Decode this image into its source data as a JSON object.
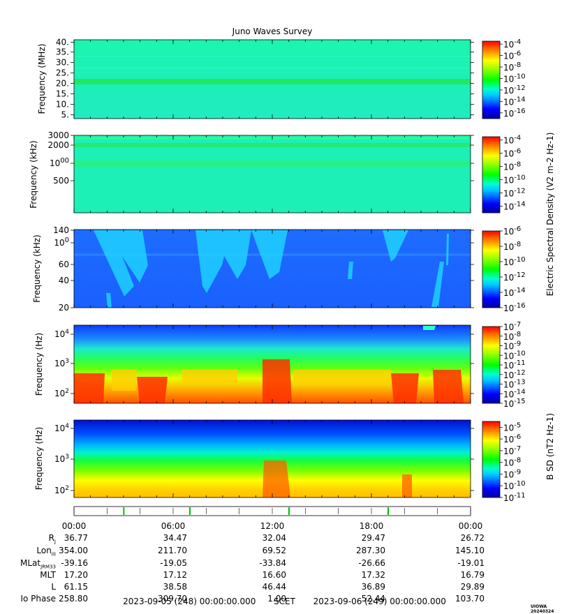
{
  "chart_data": {
    "type": "heatmap",
    "title": "Juno Waves Survey",
    "x_range": [
      "2023-09-05 00:00",
      "2023-09-06 00:00"
    ],
    "x_tick_labels": [
      "00:00",
      "06:00",
      "12:00",
      "18:00",
      "00:00"
    ],
    "panels": [
      {
        "ylabel": "Frequency (MHz)",
        "y_scale": "linear",
        "y_ticks": [
          "40.",
          "35.",
          "30.",
          "25.",
          "20.",
          "15.",
          "10.",
          "5."
        ],
        "colorbar_ticks": [
          "10-4",
          "10-6",
          "10-8",
          "10-10",
          "10-12",
          "10-14",
          "10-16"
        ],
        "colorbar_range_exp": [
          -17,
          -3.5
        ]
      },
      {
        "ylabel": "Frequency (kHz)",
        "y_scale": "log",
        "y_ticks": [
          "3000",
          "2000",
          "1000",
          "500"
        ],
        "colorbar_ticks": [
          "10-4",
          "10-6",
          "10-8",
          "10-10",
          "10-12",
          "10-14"
        ],
        "colorbar_range_exp": [
          -15,
          -3.5
        ]
      },
      {
        "ylabel": "Frequency (kHz)",
        "y_scale": "linear",
        "y_ticks": [
          "140",
          "100",
          "60",
          "40",
          "20"
        ],
        "colorbar_ticks": [
          "10-6",
          "10-8",
          "10-10",
          "10-12",
          "10-14",
          "10-16"
        ],
        "colorbar_range_exp": [
          -16,
          -6
        ]
      },
      {
        "ylabel": "Frequency (Hz)",
        "y_scale": "log",
        "y_ticks": [
          "10^4",
          "10^3",
          "10^2"
        ],
        "colorbar_ticks": [
          "10-7",
          "10-8",
          "10-9",
          "10-10",
          "10-11",
          "10-12",
          "10-13",
          "10-14",
          "10-15"
        ],
        "colorbar_range_exp": [
          -15,
          -7
        ]
      },
      {
        "ylabel": "Frequency (Hz)",
        "y_scale": "log",
        "y_ticks": [
          "10^4",
          "10^3",
          "10^2"
        ],
        "colorbar_ticks": [
          "10-5",
          "10-6",
          "10-7",
          "10-8",
          "10-9",
          "10-10",
          "10-11"
        ],
        "colorbar_range_exp": [
          -11,
          -4.5
        ]
      }
    ],
    "colorbar_labels": {
      "electric": "Electric Spectral Density (V2 m-2 Hz-1)",
      "magnetic": "B SD (nT2 Hz-1)"
    }
  },
  "ephemeris": {
    "row_labels": [
      "R",
      "Lon",
      "MLat",
      "MLT",
      "L",
      "Io Phase"
    ],
    "row_label_subscripts": [
      "J",
      "III",
      "JRM33",
      "",
      "",
      ""
    ],
    "columns": [
      {
        "time": "00:00",
        "values": [
          "36.77",
          "354.00",
          "-39.16",
          "17.20",
          "61.15",
          "258.80"
        ]
      },
      {
        "time": "06:00",
        "values": [
          "34.47",
          "211.70",
          "-19.05",
          "17.12",
          "38.58",
          "309.70"
        ]
      },
      {
        "time": "12:00",
        "values": [
          "32.04",
          "69.52",
          "-33.84",
          "16.60",
          "46.44",
          "1.00"
        ]
      },
      {
        "time": "18:00",
        "values": [
          "29.47",
          "287.30",
          "-26.66",
          "17.32",
          "36.89",
          "52.44"
        ]
      },
      {
        "time": "00:00",
        "values": [
          "26.72",
          "145.10",
          "-19.01",
          "16.79",
          "29.89",
          "103.70"
        ]
      }
    ]
  },
  "footer": {
    "start": "2023-09-05 (248) 00:00:00.000",
    "scet": "SCET",
    "end": "2023-09-06 (249) 00:00:00.000"
  },
  "credit": "UIOWA 20240324"
}
